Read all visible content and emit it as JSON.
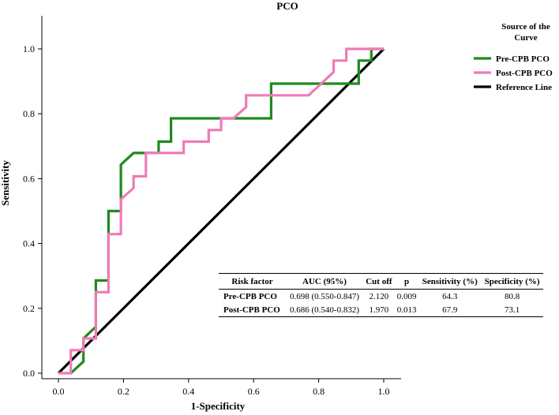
{
  "chart_data": {
    "type": "line",
    "title": "PCO",
    "xlabel": "1-Specificity",
    "ylabel": "Sensitivity",
    "xlim": [
      0,
      1
    ],
    "ylim": [
      0,
      1
    ],
    "xticks": [
      "0.0",
      "0.2",
      "0.4",
      "0.6",
      "0.8",
      "1.0"
    ],
    "yticks": [
      "0.0",
      "0.2",
      "0.4",
      "0.6",
      "0.8",
      "1.0"
    ],
    "legend_title": "Source of the Curve",
    "legend_position": "top-right",
    "series": [
      {
        "name": "Pre-CPB PCO",
        "color": "#1e8a1e",
        "x": [
          0.038,
          0.077,
          0.077,
          0.077,
          0.115,
          0.115,
          0.154,
          0.154,
          0.192,
          0.192,
          0.231,
          0.269,
          0.308,
          0.308,
          0.346,
          0.346,
          0.385,
          0.423,
          0.462,
          0.5,
          0.538,
          0.577,
          0.615,
          0.654,
          0.654,
          0.692,
          0.731,
          0.769,
          0.808,
          0.846,
          0.885,
          0.923,
          0.923,
          0.962,
          0.962,
          1.0
        ],
        "y": [
          0.0,
          0.036,
          0.107,
          0.107,
          0.143,
          0.286,
          0.286,
          0.5,
          0.5,
          0.643,
          0.679,
          0.679,
          0.679,
          0.714,
          0.714,
          0.786,
          0.786,
          0.786,
          0.786,
          0.786,
          0.786,
          0.786,
          0.786,
          0.786,
          0.893,
          0.893,
          0.893,
          0.893,
          0.893,
          0.893,
          0.893,
          0.893,
          0.964,
          0.964,
          1.0,
          1.0
        ]
      },
      {
        "name": "Post-CPB PCO",
        "color": "#f07ab8",
        "x": [
          0.0,
          0.038,
          0.038,
          0.077,
          0.077,
          0.115,
          0.115,
          0.154,
          0.154,
          0.192,
          0.192,
          0.231,
          0.231,
          0.269,
          0.269,
          0.308,
          0.346,
          0.385,
          0.385,
          0.423,
          0.462,
          0.462,
          0.5,
          0.5,
          0.538,
          0.577,
          0.577,
          0.615,
          0.654,
          0.692,
          0.731,
          0.769,
          0.808,
          0.808,
          0.846,
          0.846,
          0.885,
          0.885,
          0.923,
          0.962,
          1.0
        ],
        "y": [
          0.0,
          0.0,
          0.071,
          0.071,
          0.107,
          0.107,
          0.25,
          0.25,
          0.429,
          0.429,
          0.536,
          0.571,
          0.607,
          0.607,
          0.679,
          0.679,
          0.679,
          0.679,
          0.714,
          0.714,
          0.714,
          0.75,
          0.75,
          0.786,
          0.786,
          0.821,
          0.857,
          0.857,
          0.857,
          0.857,
          0.857,
          0.857,
          0.893,
          0.893,
          0.929,
          0.964,
          0.964,
          1.0,
          1.0,
          1.0,
          1.0
        ]
      },
      {
        "name": "Reference Line",
        "color": "#000000",
        "x": [
          0,
          1
        ],
        "y": [
          0,
          1
        ]
      }
    ]
  },
  "table": {
    "headers": [
      "Risk factor",
      "AUC (95%)",
      "Cut off",
      "p",
      "Sensitivity (%)",
      "Specificity (%)"
    ],
    "rows": [
      [
        "Pre-CPB PCO",
        "0.698 (0.550-0.847)",
        "2.120",
        "0.009",
        "64.3",
        "80.8"
      ],
      [
        "Post-CPB PCO",
        "0.686 (0.540-0.832)",
        "1.970",
        "0.013",
        "67.9",
        "73.1"
      ]
    ]
  }
}
